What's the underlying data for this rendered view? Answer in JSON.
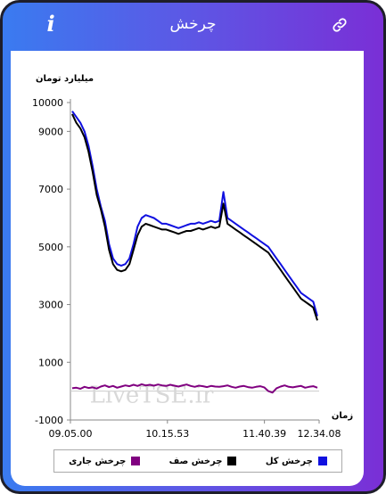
{
  "header": {
    "title": "چرخش",
    "info_label": "i"
  },
  "watermark": "LiveTSE.ir",
  "chart_data": {
    "type": "line",
    "ylabel": "میلیارد تومان",
    "xlabel": "زمان",
    "ylim": [
      -1000,
      10000
    ],
    "yticks": [
      10000,
      9000,
      7000,
      5000,
      3000,
      1000,
      -1000
    ],
    "xticks": [
      "09.05.00",
      "10.15.53",
      "11.40.39",
      "12.34.08"
    ],
    "legend_position": "bottom",
    "series": [
      {
        "name": "چرخش کل",
        "color": "#1010e0",
        "values": [
          9700,
          9500,
          9300,
          9000,
          8500,
          7800,
          7000,
          6400,
          5900,
          5100,
          4600,
          4400,
          4350,
          4400,
          4600,
          5100,
          5700,
          6000,
          6100,
          6050,
          6000,
          5900,
          5800,
          5800,
          5750,
          5700,
          5650,
          5700,
          5750,
          5800,
          5800,
          5850,
          5800,
          5850,
          5900,
          5850,
          5900,
          6900,
          6000,
          5900,
          5800,
          5700,
          5600,
          5500,
          5400,
          5300,
          5200,
          5100,
          5000,
          4800,
          4600,
          4400,
          4200,
          4000,
          3800,
          3600,
          3400,
          3300,
          3200,
          3100,
          2600
        ]
      },
      {
        "name": "چرخش صف",
        "color": "#000000",
        "values": [
          9600,
          9300,
          9100,
          8800,
          8300,
          7600,
          6800,
          6300,
          5700,
          4900,
          4400,
          4200,
          4150,
          4200,
          4400,
          4900,
          5400,
          5700,
          5800,
          5750,
          5700,
          5650,
          5600,
          5600,
          5550,
          5500,
          5450,
          5500,
          5550,
          5550,
          5600,
          5650,
          5600,
          5650,
          5700,
          5650,
          5700,
          6500,
          5800,
          5700,
          5600,
          5500,
          5400,
          5300,
          5200,
          5100,
          5000,
          4900,
          4800,
          4600,
          4400,
          4200,
          4000,
          3800,
          3600,
          3400,
          3200,
          3100,
          3000,
          2900,
          2450
        ]
      },
      {
        "name": "چرخش جاری",
        "color": "#800080",
        "values": [
          100,
          120,
          80,
          150,
          110,
          130,
          90,
          160,
          200,
          140,
          180,
          120,
          160,
          200,
          170,
          220,
          180,
          240,
          200,
          220,
          190,
          230,
          200,
          180,
          220,
          190,
          160,
          200,
          230,
          180,
          150,
          190,
          170,
          140,
          180,
          160,
          150,
          170,
          200,
          150,
          120,
          160,
          180,
          140,
          120,
          150,
          170,
          130,
          0,
          -50,
          100,
          160,
          200,
          150,
          130,
          160,
          180,
          120,
          150,
          170,
          120
        ]
      }
    ]
  }
}
